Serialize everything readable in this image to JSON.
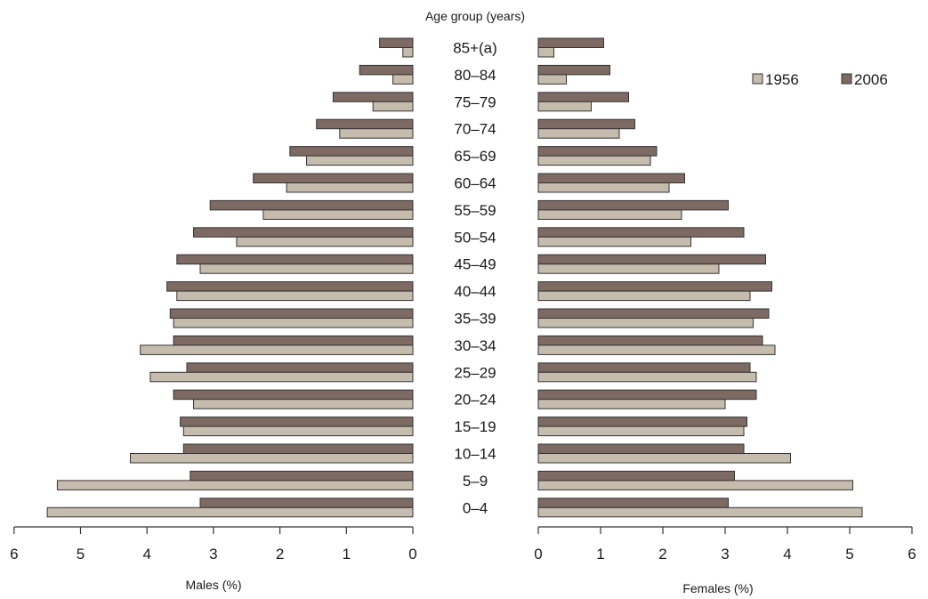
{
  "chart_data": {
    "type": "bar",
    "orientation": "horizontal",
    "center_title": "Age group (years)",
    "categories": [
      "85+(a)",
      "80–84",
      "75–79",
      "70–74",
      "65–69",
      "60–64",
      "55–59",
      "50–54",
      "45–49",
      "40–44",
      "35–39",
      "30–34",
      "25–29",
      "20–24",
      "15–19",
      "10–14",
      "5–9",
      "0–4"
    ],
    "panels": [
      {
        "side": "left",
        "xlabel": "Males (%)",
        "xlim": [
          0,
          6
        ],
        "ticks": [
          "6",
          "5",
          "4",
          "3",
          "2",
          "1",
          "0"
        ],
        "series": [
          {
            "name": "2006",
            "values": [
              0.5,
              0.8,
              1.2,
              1.45,
              1.85,
              2.4,
              3.05,
              3.3,
              3.55,
              3.7,
              3.65,
              3.6,
              3.4,
              3.6,
              3.5,
              3.45,
              3.35,
              3.2
            ]
          },
          {
            "name": "1956",
            "values": [
              0.15,
              0.3,
              0.6,
              1.1,
              1.6,
              1.9,
              2.25,
              2.65,
              3.2,
              3.55,
              3.6,
              4.1,
              3.95,
              3.3,
              3.45,
              4.25,
              5.35,
              5.5
            ]
          }
        ]
      },
      {
        "side": "right",
        "xlabel": "Females (%)",
        "xlim": [
          0,
          6
        ],
        "ticks": [
          "0",
          "1",
          "2",
          "3",
          "4",
          "5",
          "6"
        ],
        "series": [
          {
            "name": "2006",
            "values": [
              1.05,
              1.15,
              1.45,
              1.55,
              1.9,
              2.35,
              3.05,
              3.3,
              3.65,
              3.75,
              3.7,
              3.6,
              3.4,
              3.5,
              3.35,
              3.3,
              3.15,
              3.05
            ]
          },
          {
            "name": "1956",
            "values": [
              0.25,
              0.45,
              0.85,
              1.3,
              1.8,
              2.1,
              2.3,
              2.45,
              2.9,
              3.4,
              3.45,
              3.8,
              3.5,
              3.0,
              3.3,
              4.05,
              5.05,
              5.2
            ]
          }
        ]
      }
    ],
    "legend": {
      "position": "top-right",
      "items": [
        {
          "label": "1956",
          "color": "#c6bcad"
        },
        {
          "label": "2006",
          "color": "#7d6a62"
        }
      ]
    },
    "colors": {
      "s1956": "#c6bcad",
      "s2006": "#7d6a62",
      "stroke": "#333333"
    },
    "grid": false
  }
}
